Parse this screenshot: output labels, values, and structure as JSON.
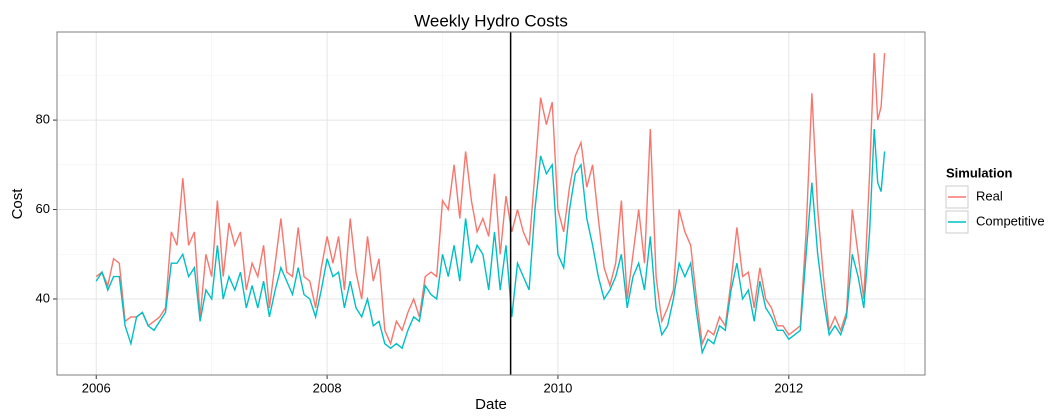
{
  "chart_data": {
    "type": "line",
    "title": "Weekly Hydro Costs",
    "x_label": "Date",
    "y_label": "Cost",
    "x": [
      2006.0,
      2006.05,
      2006.1,
      2006.15,
      2006.2,
      2006.25,
      2006.3,
      2006.35,
      2006.4,
      2006.45,
      2006.5,
      2006.55,
      2006.6,
      2006.65,
      2006.7,
      2006.75,
      2006.8,
      2006.85,
      2006.9,
      2006.95,
      2007.0,
      2007.05,
      2007.1,
      2007.15,
      2007.2,
      2007.25,
      2007.3,
      2007.35,
      2007.4,
      2007.45,
      2007.5,
      2007.55,
      2007.6,
      2007.65,
      2007.7,
      2007.75,
      2007.8,
      2007.85,
      2007.9,
      2007.95,
      2008.0,
      2008.05,
      2008.1,
      2008.15,
      2008.2,
      2008.25,
      2008.3,
      2008.35,
      2008.4,
      2008.45,
      2008.5,
      2008.55,
      2008.6,
      2008.65,
      2008.7,
      2008.75,
      2008.8,
      2008.85,
      2008.9,
      2008.95,
      2009.0,
      2009.05,
      2009.1,
      2009.15,
      2009.2,
      2009.25,
      2009.3,
      2009.35,
      2009.4,
      2009.45,
      2009.5,
      2009.55,
      2009.6,
      2009.65,
      2009.7,
      2009.75,
      2009.8,
      2009.85,
      2009.9,
      2009.95,
      2010.0,
      2010.05,
      2010.1,
      2010.15,
      2010.2,
      2010.25,
      2010.3,
      2010.35,
      2010.4,
      2010.45,
      2010.5,
      2010.55,
      2010.6,
      2010.65,
      2010.7,
      2010.75,
      2010.8,
      2010.85,
      2010.9,
      2010.95,
      2011.0,
      2011.05,
      2011.1,
      2011.15,
      2011.2,
      2011.25,
      2011.3,
      2011.35,
      2011.4,
      2011.45,
      2011.5,
      2011.55,
      2011.6,
      2011.65,
      2011.7,
      2011.75,
      2011.8,
      2011.85,
      2011.9,
      2011.95,
      2012.0,
      2012.05,
      2012.1,
      2012.15,
      2012.2,
      2012.25,
      2012.3,
      2012.35,
      2012.4,
      2012.45,
      2012.5,
      2012.55,
      2012.6,
      2012.65,
      2012.7,
      2012.74,
      2012.77,
      2012.8,
      2012.83
    ],
    "series": [
      {
        "name": "Real",
        "color": "#F8766D",
        "values": [
          45,
          46,
          43,
          49,
          48,
          35,
          36,
          36,
          37,
          34,
          35,
          36,
          38,
          55,
          52,
          67,
          52,
          55,
          36,
          50,
          45,
          62,
          45,
          57,
          52,
          55,
          42,
          48,
          45,
          52,
          38,
          48,
          58,
          46,
          45,
          56,
          45,
          44,
          38,
          47,
          54,
          48,
          54,
          42,
          58,
          46,
          40,
          54,
          44,
          49,
          33,
          30,
          35,
          33,
          37,
          40,
          36,
          45,
          46,
          45,
          62,
          60,
          70,
          58,
          73,
          62,
          55,
          58,
          54,
          68,
          50,
          63,
          55,
          60,
          55,
          52,
          68,
          85,
          79,
          84,
          60,
          55,
          65,
          72,
          75,
          65,
          70,
          58,
          47,
          43,
          48,
          62,
          40,
          50,
          60,
          48,
          78,
          45,
          35,
          38,
          42,
          60,
          55,
          52,
          40,
          30,
          33,
          32,
          36,
          34,
          44,
          56,
          45,
          46,
          38,
          47,
          40,
          38,
          34,
          34,
          32,
          33,
          34,
          55,
          86,
          60,
          45,
          33,
          36,
          33,
          37,
          60,
          50,
          40,
          68,
          95,
          80,
          83,
          95
        ]
      },
      {
        "name": "Competitive",
        "color": "#00BFC4",
        "values": [
          44,
          46,
          42,
          45,
          45,
          34,
          30,
          36,
          37,
          34,
          33,
          35,
          37,
          48,
          48,
          50,
          45,
          47,
          35,
          42,
          40,
          52,
          40,
          45,
          42,
          46,
          38,
          43,
          38,
          44,
          36,
          42,
          47,
          44,
          41,
          47,
          41,
          40,
          36,
          42,
          49,
          45,
          46,
          38,
          44,
          38,
          36,
          40,
          34,
          35,
          30,
          29,
          30,
          29,
          33,
          36,
          35,
          43,
          41,
          40,
          50,
          45,
          52,
          44,
          58,
          48,
          52,
          50,
          42,
          55,
          42,
          52,
          36,
          48,
          45,
          42,
          60,
          72,
          68,
          70,
          50,
          47,
          60,
          68,
          70,
          58,
          52,
          45,
          40,
          42,
          45,
          50,
          38,
          45,
          48,
          42,
          54,
          38,
          32,
          34,
          40,
          48,
          45,
          48,
          37,
          28,
          31,
          30,
          34,
          33,
          42,
          48,
          40,
          42,
          35,
          44,
          38,
          36,
          33,
          33,
          31,
          32,
          33,
          50,
          66,
          50,
          40,
          32,
          34,
          32,
          36,
          50,
          45,
          38,
          55,
          78,
          66,
          64,
          73
        ]
      }
    ],
    "legend_title": "Simulation",
    "legend_position": "right",
    "xlim": [
      2005.66,
      2013.18
    ],
    "xticks": [
      2006,
      2008,
      2010,
      2012
    ],
    "ylim": [
      23,
      99.7
    ],
    "yticks": [
      40,
      60,
      80
    ],
    "vline": 2009.59,
    "grid": true,
    "minor_grid": true
  }
}
